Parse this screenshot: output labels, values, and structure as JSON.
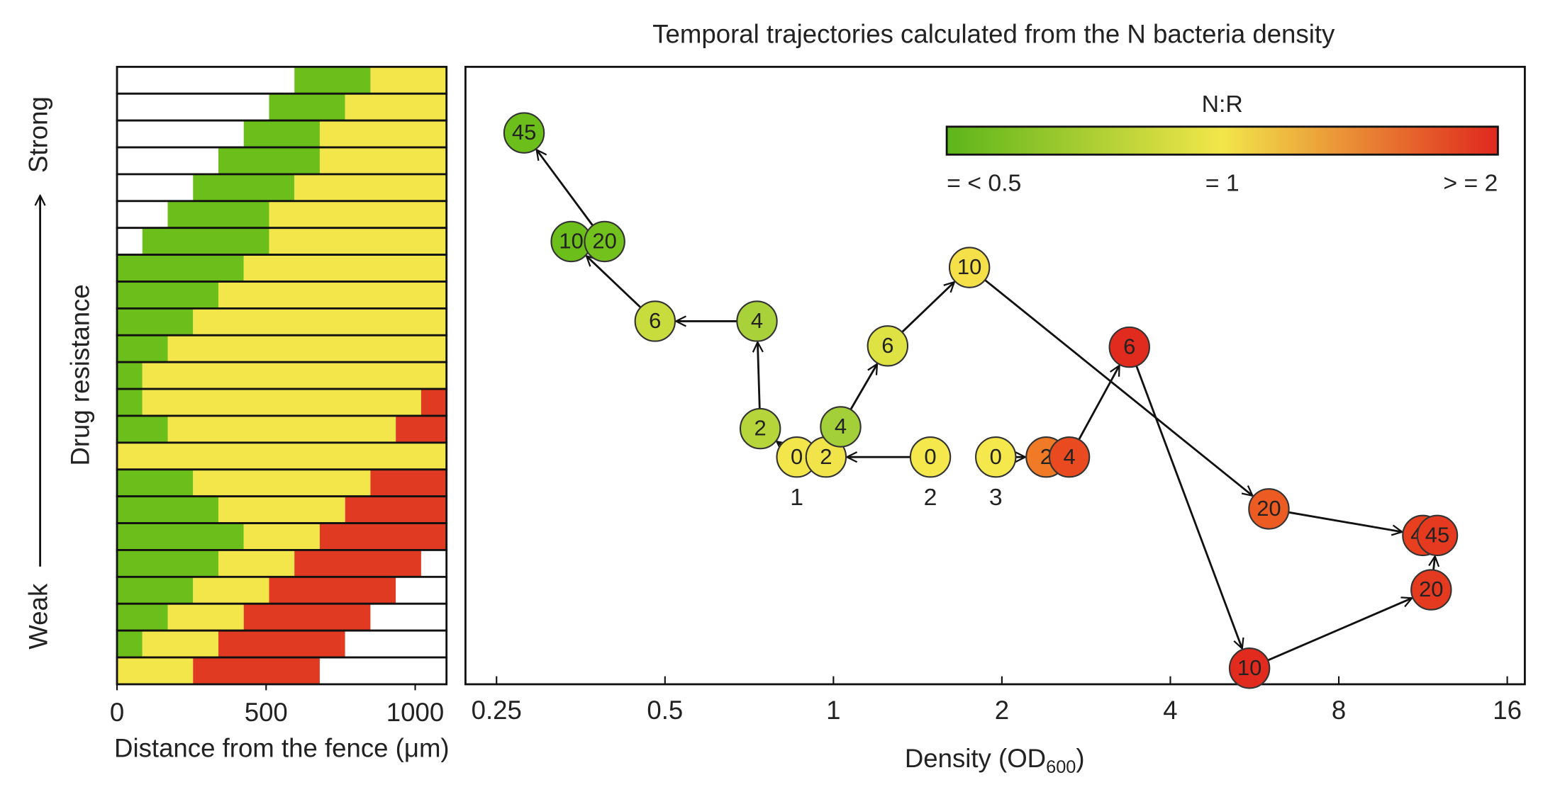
{
  "chart_data": [
    {
      "type": "bar",
      "orientation": "horizontal",
      "stacked": true,
      "xlabel": "Distance from the fence (μm)",
      "ylabel": "Drug resistance",
      "annotations": [
        "Strong",
        "Weak"
      ],
      "xlim": [
        0,
        1105
      ],
      "xticks": [
        0,
        500,
        1000
      ],
      "series": [
        {
          "color": "#ffffff",
          "values": [
            595,
            510,
            425,
            340,
            255,
            170,
            85,
            0,
            0,
            0,
            0,
            0,
            0,
            0,
            0,
            0,
            0,
            0,
            0,
            0,
            0,
            0,
            0
          ]
        },
        {
          "color": "#6cbf1a",
          "values": [
            255,
            255,
            255,
            340,
            340,
            340,
            425,
            425,
            340,
            255,
            170,
            85,
            85,
            170,
            0,
            255,
            340,
            425,
            340,
            255,
            170,
            85,
            0
          ]
        },
        {
          "color": "#f2e64a",
          "values": [
            255,
            340,
            425,
            425,
            510,
            595,
            595,
            680,
            765,
            850,
            935,
            1020,
            935,
            765,
            1105,
            595,
            425,
            255,
            255,
            255,
            255,
            255,
            255
          ]
        },
        {
          "color": "#e03a22",
          "values": [
            0,
            0,
            0,
            0,
            0,
            0,
            0,
            0,
            0,
            0,
            0,
            0,
            85,
            170,
            0,
            255,
            340,
            425,
            425,
            425,
            425,
            425,
            425
          ]
        },
        {
          "color": "#ffffff",
          "values": [
            0,
            0,
            0,
            0,
            0,
            0,
            0,
            0,
            0,
            0,
            0,
            0,
            0,
            0,
            0,
            0,
            0,
            0,
            85,
            170,
            255,
            340,
            425
          ]
        }
      ]
    },
    {
      "type": "scatter",
      "title": "Temporal trajectories calculated from the N bacteria density",
      "xlabel": [
        "Density (OD",
        "600",
        ")"
      ],
      "xscale": "log",
      "xlim": [
        0.22,
        17.2
      ],
      "xticks": [
        0.25,
        0.5,
        1,
        2,
        4,
        8,
        16
      ],
      "ylim": [
        0,
        100
      ],
      "colorbar": {
        "title": "N:R",
        "labels": [
          "= < 0.5",
          "= 1",
          "> = 2"
        ],
        "colors": [
          "#5db51a",
          "#f2e64a",
          "#e0281e"
        ]
      },
      "series": [
        {
          "name": "1",
          "x": [
            0.86,
            0.74,
            0.73,
            0.48,
            0.34,
            0.39,
            0.28
          ],
          "values": [
            36.8,
            41.4,
            58.8,
            58.8,
            71.7,
            71.7,
            89.3
          ],
          "point_labels": [
            0,
            2,
            4,
            6,
            10,
            20,
            45
          ],
          "colors": [
            "#f2e64a",
            "#b5d53a",
            "#a9d23a",
            "#c8dc3e",
            "#6cbf1a",
            "#72c11c",
            "#6cbf1a"
          ]
        },
        {
          "name": "2",
          "x": [
            1.49,
            0.97,
            1.03,
            1.25,
            1.75,
            6.0,
            11.3
          ],
          "values": [
            36.8,
            36.8,
            41.7,
            54.8,
            67.5,
            28.4,
            24.1
          ],
          "point_labels": [
            0,
            2,
            4,
            6,
            10,
            20,
            45
          ],
          "colors": [
            "#f5e84c",
            "#f0e44a",
            "#a3d038",
            "#dfe243",
            "#f5e04a",
            "#ec5b22",
            "#e8401f"
          ]
        },
        {
          "name": "3",
          "x": [
            1.95,
            2.4,
            2.64,
            3.38,
            5.54,
            11.7,
            12.0
          ],
          "values": [
            36.8,
            36.8,
            36.8,
            54.6,
            2.6,
            15.3,
            24.1
          ],
          "point_labels": [
            0,
            2,
            4,
            6,
            10,
            20,
            45
          ],
          "colors": [
            "#f5e84c",
            "#f07a25",
            "#e94a20",
            "#e02b1e",
            "#e02b1e",
            "#e43a20",
            "#e63a20"
          ]
        }
      ]
    }
  ]
}
